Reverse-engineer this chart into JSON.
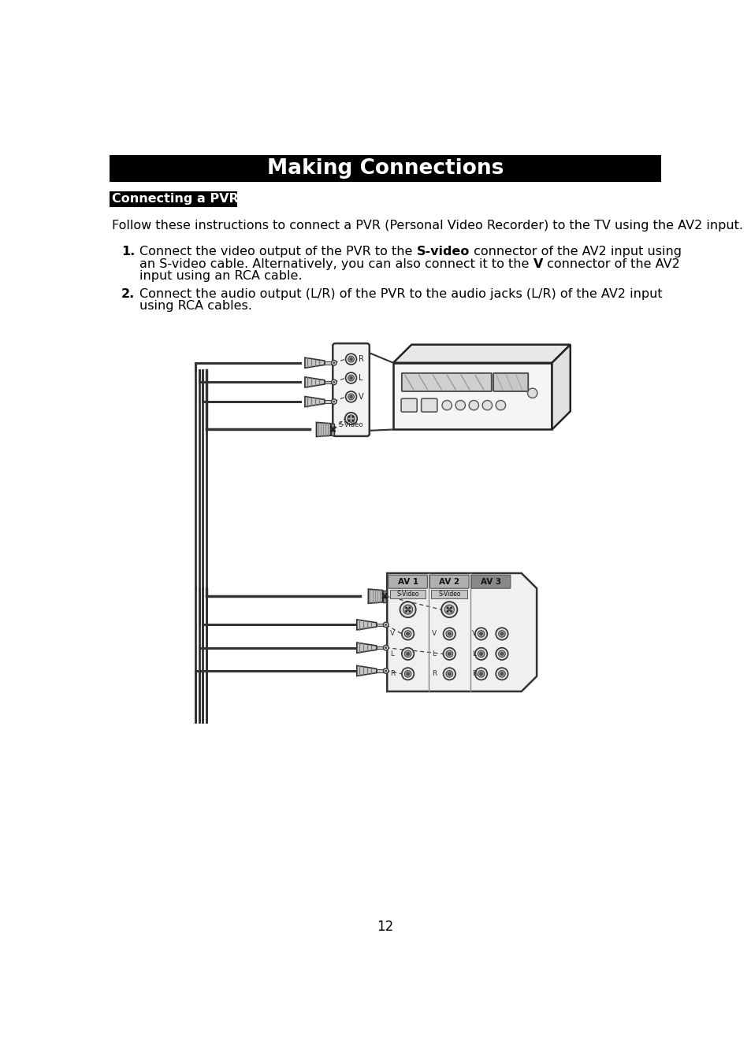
{
  "title": "Making Connections",
  "section_title": "Connecting a PVR",
  "intro_text": "Follow these instructions to connect a PVR (Personal Video Recorder) to the TV using the AV2 input.",
  "item1_line1": "Connect the video output of the PVR to the ",
  "item1_bold1": "S-video",
  "item1_line1b": " connector of the AV2 input using",
  "item1_line2": "an S-video cable. Alternatively, you can also connect it to the ",
  "item1_bold2": "V",
  "item1_line2b": " connector of the AV2",
  "item1_line3": "input using an RCA cable.",
  "item2_line1": "Connect the audio output (L/R) of the PVR to the audio jacks (L/R) of the AV2 input",
  "item2_line2": "using RCA cables.",
  "page_number": "12",
  "bg_color": "#ffffff",
  "title_bar_color": "#000000",
  "title_text_color": "#ffffff",
  "section_bar_color": "#000000",
  "section_text_color": "#ffffff"
}
